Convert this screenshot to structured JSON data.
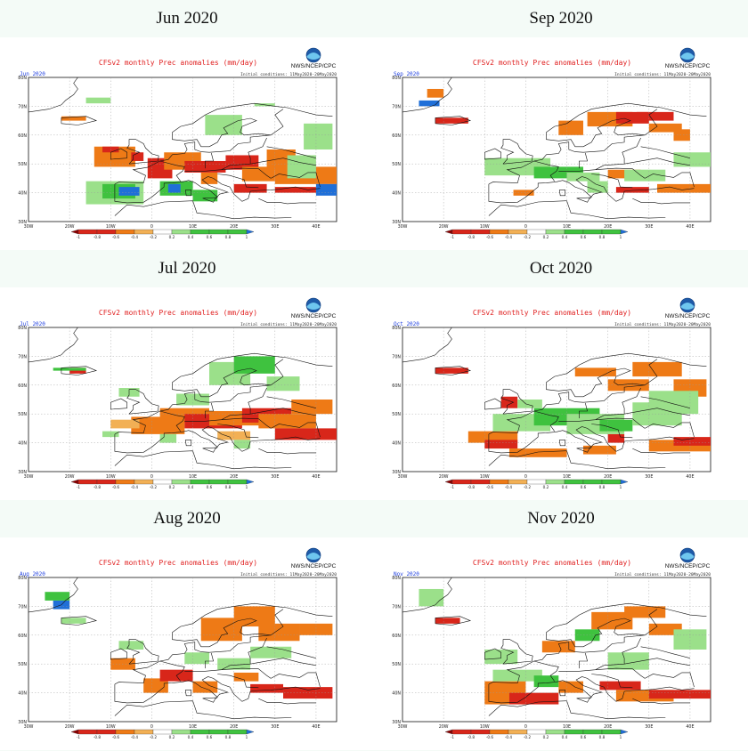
{
  "colors": {
    "strong_dry": "#8b0000",
    "dry": "#d8261a",
    "mod_dry": "#ee7a16",
    "light_dry": "#f2b055",
    "light_wet": "#9be08a",
    "wet": "#3fc23f",
    "strong_wet": "#1f6fd8",
    "land_line": "#111111",
    "header_red": "#e02020",
    "label_blue": "#2040e0",
    "background": "#f4fbf7"
  },
  "panels": [
    {
      "title": "Jun 2020",
      "corner_label": "Jun 2020",
      "header": "CFSv2 monthly Prec anomalies (mm/day)",
      "init": "Initial conditions: 11May2020-20May2020",
      "agency": "NWS/NCEP/CPC"
    },
    {
      "title": "Sep 2020",
      "corner_label": "Sep 2020",
      "header": "CFSv2 monthly Prec anomalies (mm/day)",
      "init": "Initial conditions: 11May2020-20May2020",
      "agency": "NWS/NCEP/CPC"
    },
    {
      "title": "Jul 2020",
      "corner_label": "Jul 2020",
      "header": "CFSv2 monthly Prec anomalies (mm/day)",
      "init": "Initial conditions: 11May2020-20May2020",
      "agency": "NWS/NCEP/CPC"
    },
    {
      "title": "Oct 2020",
      "corner_label": "Oct 2020",
      "header": "CFSv2 monthly Prec anomalies (mm/day)",
      "init": "Initial conditions: 11May2020-20May2020",
      "agency": "NWS/NCEP/CPC"
    },
    {
      "title": "Aug 2020",
      "corner_label": "Aug 2020",
      "header": "CFSv2 monthly Prec anomalies (mm/day)",
      "init": "Initial conditions: 11May2020-20May2020",
      "agency": "NWS/NCEP/CPC"
    },
    {
      "title": "Nov 2020",
      "corner_label": "Nov 2020",
      "header": "CFSv2 monthly Prec anomalies (mm/day)",
      "init": "Initial conditions: 11May2020-20May2020",
      "agency": "NWS/NCEP/CPC"
    }
  ],
  "lat_labels": [
    "80N",
    "70N",
    "60N",
    "50N",
    "40N",
    "30N"
  ],
  "lon_labels": [
    "30W",
    "20W",
    "10W",
    "0",
    "10E",
    "20E",
    "30E",
    "40E"
  ],
  "colorbar_labels": [
    "-1",
    "-0.8",
    "-0.6",
    "-0.4",
    "-0.2",
    "0.2",
    "0.4",
    "0.6",
    "0.8",
    "1"
  ]
}
